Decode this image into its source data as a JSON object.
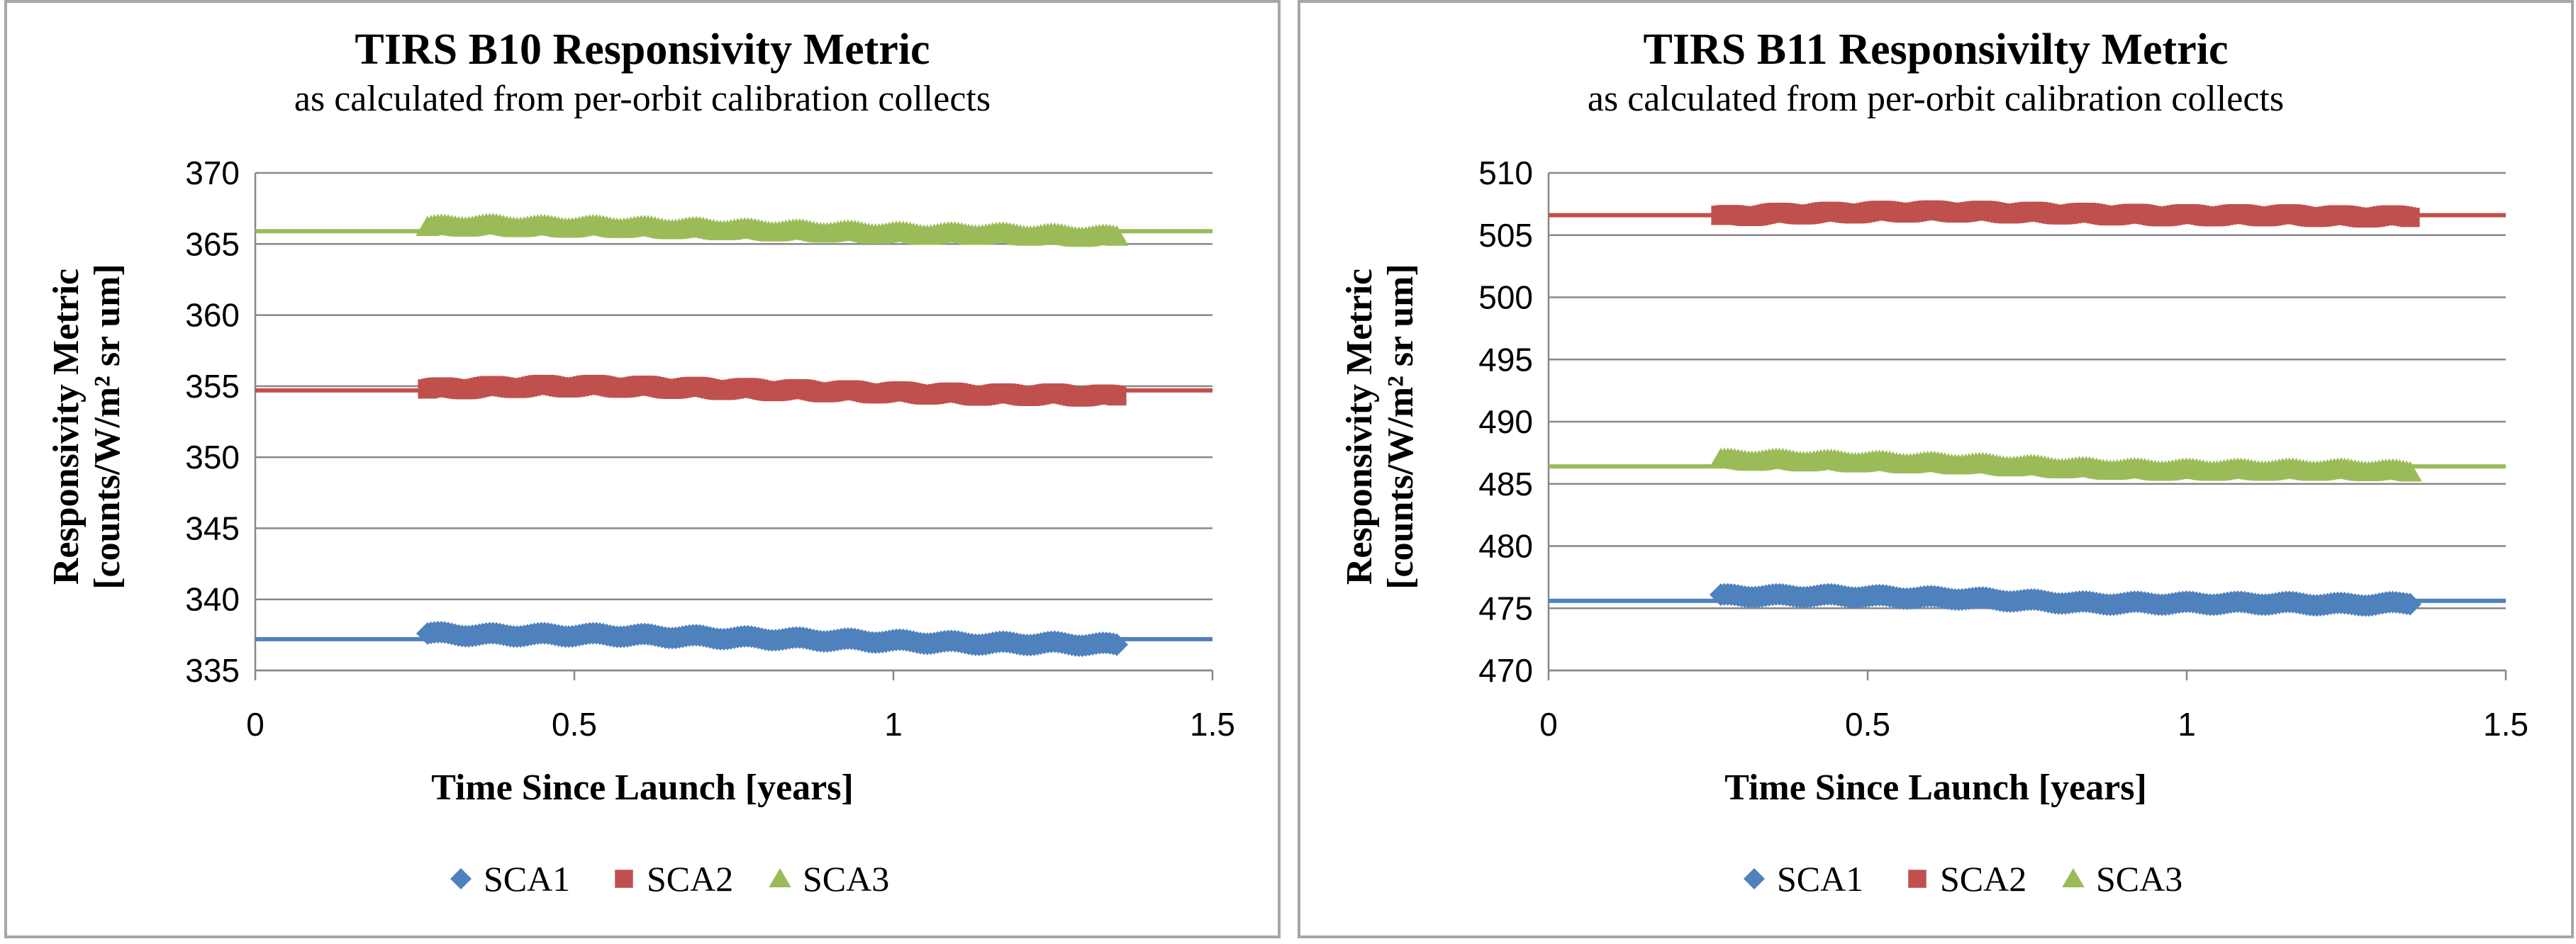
{
  "chart_data": [
    {
      "type": "scatter",
      "title": "TIRS B10 Responsivity Metric",
      "subtitle": "as calculated from per-orbit calibration collects",
      "xlabel": "Time Since Launch [years]",
      "ylabel_line1": "Responsivity Metric",
      "ylabel_line2": "[counts/W/m² sr um]",
      "xlim": [
        0,
        1.5
      ],
      "ylim": [
        335,
        370
      ],
      "x_ticks": [
        0,
        0.5,
        1,
        1.5
      ],
      "x_tick_labels": [
        "0",
        "0.5",
        "1",
        "1.5"
      ],
      "y_ticks": [
        335,
        340,
        345,
        350,
        355,
        360,
        365,
        370
      ],
      "grid": "horizontal",
      "legend_position": "bottom",
      "series": [
        {
          "name": "SCA1",
          "marker": "diamond",
          "color": "#4f81bd",
          "reference": 337.2,
          "x": [
            0.27,
            0.35,
            0.45,
            0.55,
            0.65,
            0.75,
            0.85,
            0.95,
            1.05,
            1.15,
            1.25,
            1.35
          ],
          "values": [
            337.6,
            337.5,
            337.5,
            337.5,
            337.4,
            337.3,
            337.2,
            337.1,
            337.0,
            336.9,
            336.9,
            336.8
          ]
        },
        {
          "name": "SCA2",
          "marker": "square",
          "color": "#c0504d",
          "reference": 354.7,
          "x": [
            0.27,
            0.35,
            0.45,
            0.55,
            0.65,
            0.75,
            0.85,
            0.95,
            1.05,
            1.15,
            1.25,
            1.35
          ],
          "values": [
            354.8,
            354.9,
            355.0,
            355.0,
            354.9,
            354.8,
            354.7,
            354.6,
            354.5,
            354.4,
            354.4,
            354.3
          ]
        },
        {
          "name": "SCA3",
          "marker": "triangle",
          "color": "#9bbb59",
          "reference": 365.9,
          "x": [
            0.27,
            0.35,
            0.45,
            0.55,
            0.65,
            0.75,
            0.85,
            0.95,
            1.05,
            1.15,
            1.25,
            1.35
          ],
          "values": [
            366.2,
            366.3,
            366.2,
            366.2,
            366.1,
            366.0,
            365.9,
            365.8,
            365.7,
            365.7,
            365.6,
            365.5
          ]
        }
      ]
    },
    {
      "type": "scatter",
      "title": "TIRS B11 Responsivilty Metric",
      "subtitle": "as calculated from per-orbit calibration collects",
      "xlabel": "Time Since Launch [years]",
      "ylabel_line1": "Responsivity Metric",
      "ylabel_line2": "[counts/W/m² sr um]",
      "xlim": [
        0,
        1.5
      ],
      "ylim": [
        470,
        510
      ],
      "x_ticks": [
        0,
        0.5,
        1,
        1.5
      ],
      "x_tick_labels": [
        "0",
        "0.5",
        "1",
        "1.5"
      ],
      "y_ticks": [
        470,
        475,
        480,
        485,
        490,
        495,
        500,
        505,
        510
      ],
      "grid": "horizontal",
      "legend_position": "bottom",
      "series": [
        {
          "name": "SCA1",
          "marker": "diamond",
          "color": "#4f81bd",
          "reference": 475.6,
          "x": [
            0.27,
            0.35,
            0.45,
            0.55,
            0.65,
            0.75,
            0.85,
            0.95,
            1.05,
            1.15,
            1.25,
            1.35
          ],
          "values": [
            476.0,
            476.0,
            476.0,
            475.9,
            475.8,
            475.6,
            475.4,
            475.4,
            475.4,
            475.4,
            475.3,
            475.4
          ]
        },
        {
          "name": "SCA2",
          "marker": "square",
          "color": "#c0504d",
          "reference": 506.6,
          "x": [
            0.27,
            0.35,
            0.45,
            0.55,
            0.65,
            0.75,
            0.85,
            0.95,
            1.05,
            1.15,
            1.25,
            1.35
          ],
          "values": [
            506.5,
            506.7,
            506.8,
            506.9,
            506.9,
            506.8,
            506.7,
            506.6,
            506.6,
            506.6,
            506.5,
            506.5
          ]
        },
        {
          "name": "SCA3",
          "marker": "triangle",
          "color": "#9bbb59",
          "reference": 486.4,
          "x": [
            0.27,
            0.35,
            0.45,
            0.55,
            0.65,
            0.75,
            0.85,
            0.95,
            1.05,
            1.15,
            1.25,
            1.35
          ],
          "values": [
            486.9,
            486.9,
            486.8,
            486.7,
            486.6,
            486.4,
            486.2,
            486.1,
            486.1,
            486.1,
            486.1,
            486.0
          ]
        }
      ]
    }
  ]
}
